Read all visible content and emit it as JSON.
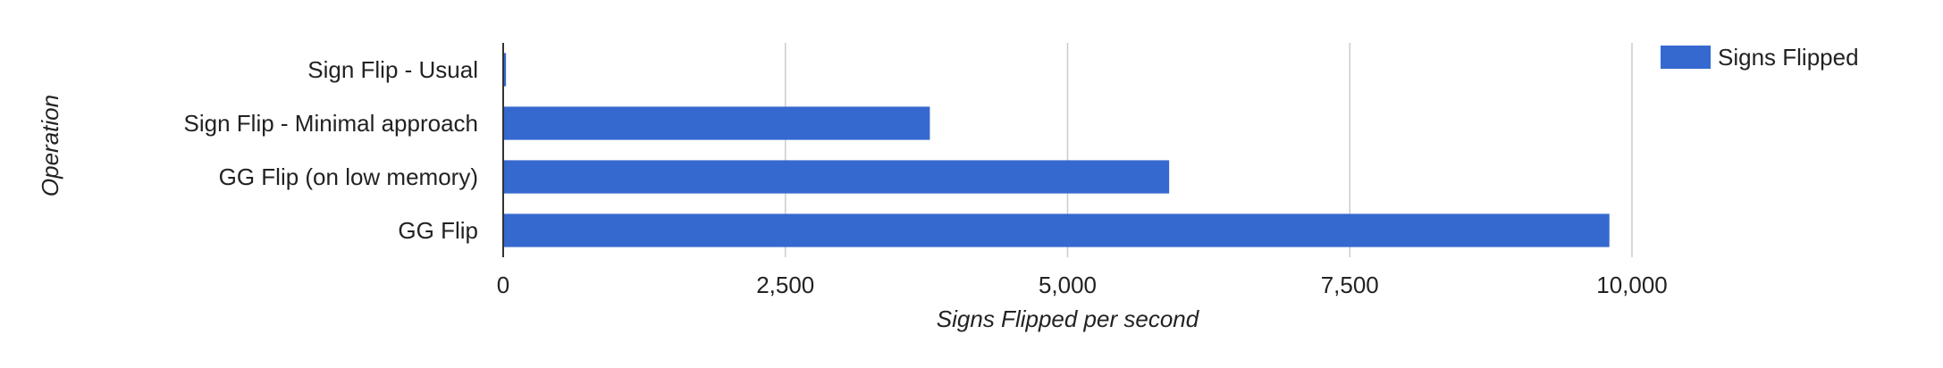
{
  "chart_data": {
    "type": "bar",
    "orientation": "horizontal",
    "categories": [
      "Sign Flip - Usual",
      "Sign Flip - Minimal approach",
      "GG Flip (on low memory)",
      "GG Flip"
    ],
    "series": [
      {
        "name": "Signs Flipped",
        "color": "#3669cf",
        "values": [
          25,
          3780,
          5900,
          9800
        ]
      }
    ],
    "xlabel": "Signs Flipped per second",
    "ylabel": "Operation",
    "xlim": [
      0,
      10000
    ],
    "xticks": [
      0,
      2500,
      5000,
      7500,
      10000
    ],
    "xtick_labels": [
      "0",
      "2,500",
      "5,000",
      "7,500",
      "10,000"
    ],
    "grid": "vertical",
    "legend": "top-right"
  }
}
